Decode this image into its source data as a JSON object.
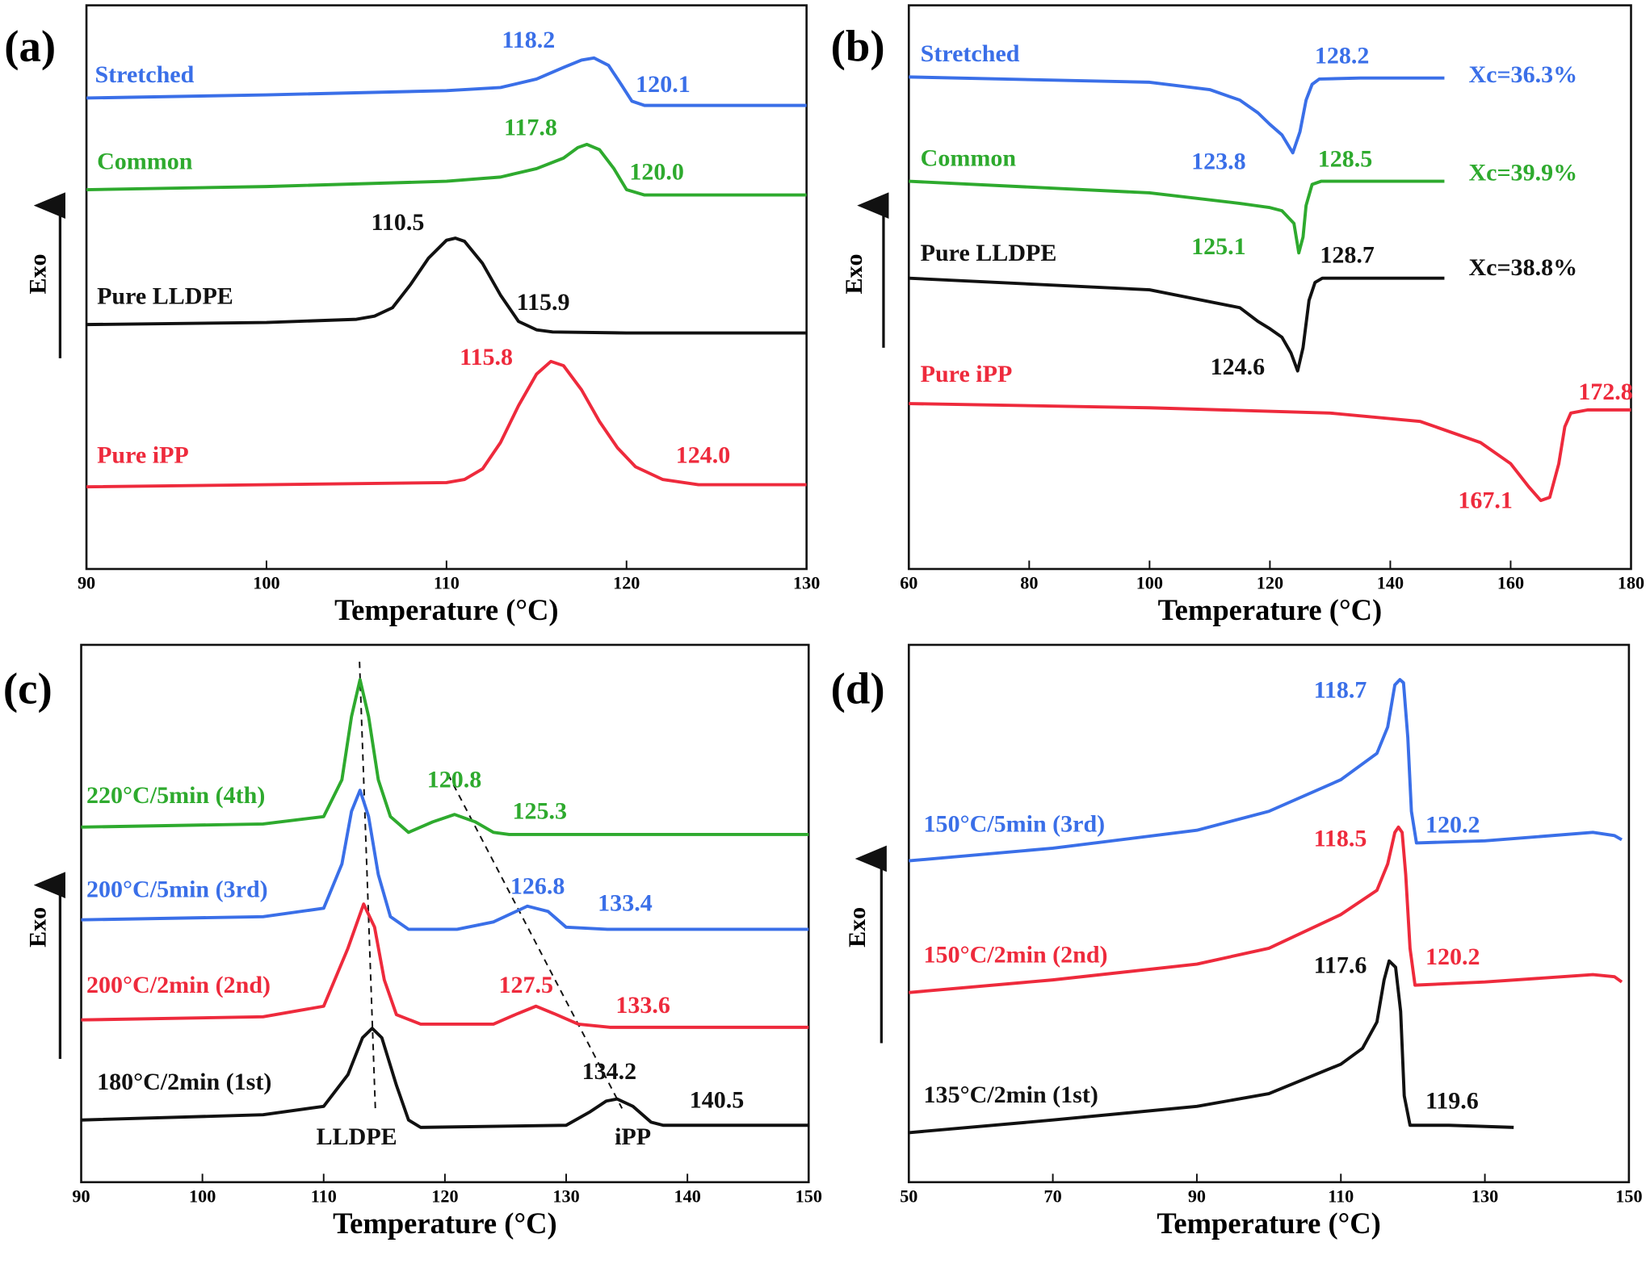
{
  "chart_data": [
    {
      "type": "line",
      "label": "(a)",
      "x_label": "Temperature (°C)",
      "y_label": "Exo",
      "xlim": [
        90,
        130
      ],
      "xticks": [
        90,
        100,
        110,
        120,
        130
      ],
      "ylim": [
        0,
        535
      ],
      "series": [
        {
          "name": "Stretched",
          "color": "#3a6fe8",
          "x": [
            90,
            100,
            110,
            113,
            115,
            116.5,
            117.5,
            118.2,
            119,
            119.7,
            120.3,
            121,
            125,
            130
          ],
          "values": [
            447,
            450,
            454,
            457,
            465,
            476,
            483,
            485,
            478,
            460,
            444,
            440,
            440,
            440
          ],
          "annotations": [
            "118.2",
            "120.1"
          ]
        },
        {
          "name": "Common",
          "color": "#2eaa2e",
          "x": [
            90,
            100,
            110,
            113,
            115,
            116.5,
            117.3,
            117.8,
            118.5,
            119.3,
            120,
            121,
            130
          ],
          "values": [
            360,
            363,
            368,
            372,
            380,
            390,
            400,
            403,
            398,
            380,
            360,
            355,
            355
          ],
          "annotations": [
            "117.8",
            "120.0"
          ]
        },
        {
          "name": "Pure LLDPE",
          "color": "#111111",
          "x": [
            90,
            100,
            105,
            106,
            107,
            108,
            109,
            110,
            110.5,
            111,
            112,
            113,
            114,
            115,
            115.9,
            120,
            130
          ],
          "values": [
            232,
            234,
            237,
            240,
            248,
            270,
            295,
            312,
            314,
            311,
            290,
            260,
            235,
            227,
            225,
            224,
            224
          ],
          "annotations": [
            "110.5",
            "115.9"
          ]
        },
        {
          "name": "Pure iPP",
          "color": "#ee2a3c",
          "x": [
            90,
            110,
            111,
            112,
            113,
            114,
            115,
            115.8,
            116.5,
            117.5,
            118.5,
            119.5,
            120.5,
            122,
            124,
            130
          ],
          "values": [
            78,
            82,
            85,
            95,
            120,
            155,
            185,
            197,
            193,
            170,
            140,
            115,
            97,
            85,
            80,
            80
          ],
          "annotations": [
            "115.8",
            "124.0"
          ]
        }
      ]
    },
    {
      "type": "line",
      "label": "(b)",
      "x_label": "Temperature (°C)",
      "y_label": "Exo",
      "xlim": [
        60,
        180
      ],
      "xticks": [
        60,
        80,
        100,
        120,
        140,
        160,
        180
      ],
      "ylim": [
        0,
        535
      ],
      "series": [
        {
          "name": "Stretched",
          "color": "#3a6fe8",
          "x": [
            60,
            100,
            110,
            115,
            118,
            120,
            122,
            123.8,
            125,
            126,
            127,
            128.2,
            135,
            149
          ],
          "values": [
            467,
            462,
            455,
            445,
            433,
            422,
            412,
            395,
            415,
            445,
            460,
            465,
            466,
            466
          ],
          "annotations": [
            "128.2",
            "123.8",
            "Xc=36.3%"
          ]
        },
        {
          "name": "Common",
          "color": "#2eaa2e",
          "x": [
            60,
            100,
            115,
            120,
            122,
            124,
            124.8,
            125.5,
            126,
            127,
            128.5,
            149
          ],
          "values": [
            368,
            357,
            347,
            343,
            340,
            328,
            300,
            315,
            345,
            365,
            368,
            368
          ],
          "annotations": [
            "128.5",
            "125.1",
            "Xc=39.9%"
          ]
        },
        {
          "name": "Pure LLDPE",
          "color": "#111111",
          "x": [
            60,
            100,
            115,
            118,
            120,
            122,
            123.5,
            124.6,
            125.5,
            126.5,
            127.5,
            128.7,
            149
          ],
          "values": [
            276,
            265,
            248,
            235,
            228,
            220,
            205,
            188,
            210,
            255,
            272,
            276,
            276
          ],
          "annotations": [
            "128.7",
            "124.6",
            "Xc=38.8%"
          ]
        },
        {
          "name": "Pure iPP",
          "color": "#ee2a3c",
          "x": [
            60,
            100,
            130,
            145,
            155,
            160,
            163,
            165,
            166.5,
            168,
            169,
            170,
            172.8,
            180
          ],
          "values": [
            157,
            153,
            148,
            140,
            120,
            100,
            78,
            65,
            68,
            100,
            135,
            148,
            151,
            151
          ],
          "annotations": [
            "172.8",
            "167.1"
          ]
        }
      ]
    },
    {
      "type": "line",
      "label": "(c)",
      "x_label": "Temperature (°C)",
      "y_label": "Exo",
      "xlim": [
        90,
        150
      ],
      "xticks": [
        90,
        100,
        110,
        120,
        130,
        140,
        150
      ],
      "ylim": [
        0,
        510
      ],
      "annotations": [
        "LLDPE",
        "iPP"
      ],
      "series": [
        {
          "name": "220°C/5min (4th)",
          "color": "#2eaa2e",
          "x": [
            90,
            105,
            110,
            111.5,
            112.3,
            113,
            113.7,
            114.5,
            115.5,
            117,
            119,
            120.8,
            122.5,
            124,
            125.3,
            150
          ],
          "values": [
            337,
            340,
            347,
            382,
            442,
            477,
            442,
            382,
            347,
            332,
            342,
            349,
            342,
            332,
            330,
            330
          ],
          "annotations": [
            "120.8",
            "125.3"
          ]
        },
        {
          "name": "200°C/5min (3rd)",
          "color": "#3a6fe8",
          "x": [
            90,
            105,
            110,
            111.5,
            112.3,
            113,
            113.7,
            114.5,
            115.5,
            117,
            121,
            124,
            126.8,
            128.5,
            130,
            133.4,
            150
          ],
          "values": [
            249,
            252,
            260,
            302,
            352,
            372,
            347,
            292,
            252,
            240,
            240,
            247,
            262,
            257,
            242,
            240,
            240
          ],
          "annotations": [
            "126.8",
            "133.4"
          ]
        },
        {
          "name": "200°C/2min (2nd)",
          "color": "#ee2a3c",
          "x": [
            90,
            105,
            110,
            112,
            113.3,
            114.2,
            115,
            116,
            118,
            124,
            126,
            127.5,
            129,
            131,
            133.6,
            150
          ],
          "values": [
            154,
            157,
            167,
            222,
            264,
            242,
            192,
            159,
            150,
            150,
            160,
            167,
            160,
            150,
            147,
            147
          ],
          "annotations": [
            "127.5",
            "133.6"
          ]
        },
        {
          "name": "180°C/2min (1st)",
          "color": "#111111",
          "x": [
            90,
            105,
            110,
            112,
            113.2,
            114,
            114.8,
            116,
            117,
            118,
            130,
            132,
            133.3,
            134.2,
            135.5,
            137,
            138,
            150
          ],
          "values": [
            59,
            64,
            72,
            102,
            137,
            146,
            137,
            92,
            59,
            52,
            54,
            67,
            77,
            79,
            72,
            57,
            54,
            54
          ],
          "annotations": [
            "134.2",
            "140.5"
          ]
        }
      ]
    },
    {
      "type": "line",
      "label": "(d)",
      "x_label": "Temperature (°C)",
      "y_label": "Exo",
      "xlim": [
        50,
        150
      ],
      "xticks": [
        50,
        70,
        90,
        110,
        130,
        150
      ],
      "ylim": [
        0,
        510
      ],
      "series": [
        {
          "name": "150°C/5min  (3rd)",
          "color": "#3a6fe8",
          "x": [
            50,
            70,
            90,
            100,
            110,
            115,
            116.5,
            117.5,
            118.2,
            118.7,
            119.3,
            119.8,
            120.5,
            130,
            145,
            148,
            149
          ],
          "values": [
            305,
            317,
            334,
            352,
            382,
            407,
            432,
            472,
            477,
            474,
            422,
            352,
            322,
            324,
            332,
            329,
            325
          ],
          "annotations": [
            "118.7",
            "120.2"
          ]
        },
        {
          "name": "150°C/2min  (2nd)",
          "color": "#ee2a3c",
          "x": [
            50,
            70,
            90,
            100,
            110,
            115,
            116.5,
            117.5,
            118,
            118.5,
            119,
            119.6,
            120.3,
            130,
            145,
            148,
            149
          ],
          "values": [
            180,
            192,
            207,
            222,
            254,
            277,
            302,
            332,
            337,
            332,
            292,
            222,
            187,
            190,
            197,
            195,
            190
          ],
          "annotations": [
            "118.5",
            "120.2"
          ]
        },
        {
          "name": "135°C/2min  (1st)",
          "color": "#111111",
          "x": [
            50,
            70,
            90,
            100,
            110,
            113,
            115,
            116,
            116.7,
            117.6,
            118.3,
            118.8,
            119.6,
            125,
            134
          ],
          "values": [
            47,
            59,
            72,
            84,
            112,
            127,
            152,
            192,
            210,
            204,
            162,
            82,
            54,
            54,
            52
          ],
          "annotations": [
            "117.6",
            "119.6"
          ]
        }
      ]
    }
  ]
}
